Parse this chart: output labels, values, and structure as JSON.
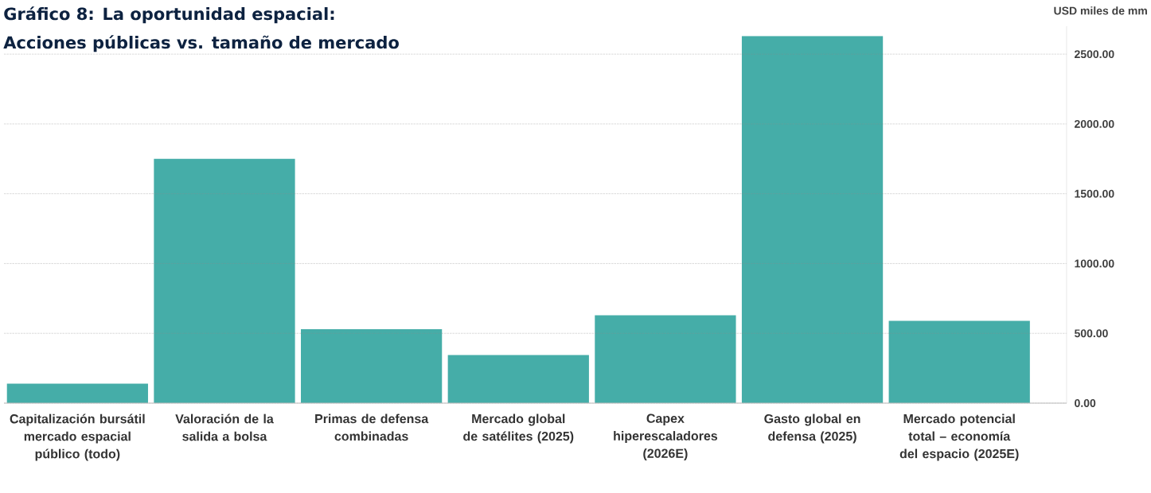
{
  "chart_data": {
    "type": "bar",
    "title": "Gráfico 8: La oportunidad espacial:",
    "subtitle": "Acciones públicas vs. tamaño de mercado",
    "ylabel": "USD miles de mm",
    "categories": [
      "Capitalización bursátil mercado espacial público (todo)",
      "Valoración de la salida a bolsa",
      "Primas de defensa combinadas",
      "Mercado global de satélites (2025)",
      "Capex hiperescaladores (2026E)",
      "Gasto global en defensa (2025)",
      "Mercado potencial total – economía del espacio (2025E)"
    ],
    "values": [
      140,
      1750,
      530,
      345,
      630,
      2630,
      590
    ],
    "color": "#45ada8",
    "ylim": [
      0,
      2700
    ],
    "yticks": [
      {
        "value": 0,
        "label": "0.00"
      },
      {
        "value": 500,
        "label": "500.00"
      },
      {
        "value": 1000,
        "label": "1000.00"
      },
      {
        "value": 1500,
        "label": "1500.00"
      },
      {
        "value": 2000,
        "label": "2000.00"
      },
      {
        "value": 2500,
        "label": "2500.00"
      }
    ],
    "grid": "y"
  }
}
